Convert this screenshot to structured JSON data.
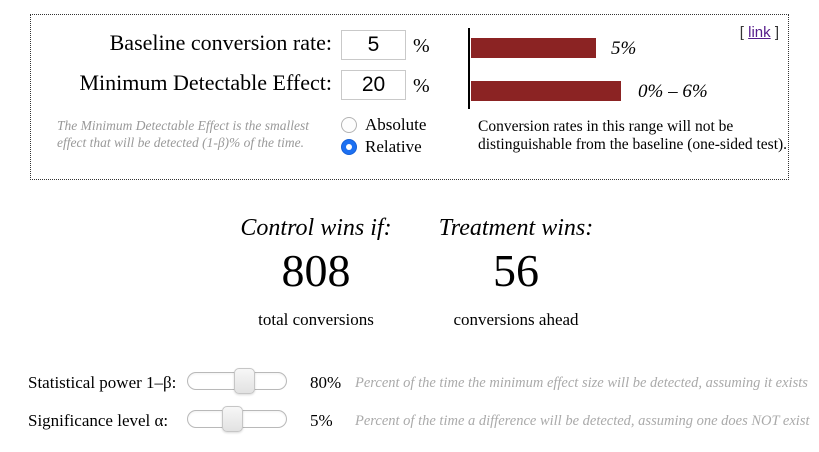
{
  "top_box": {
    "fields": [
      {
        "label": "Baseline conversion rate:",
        "value": "5",
        "unit": "%"
      },
      {
        "label": "Minimum Detectable Effect:",
        "value": "20",
        "unit": "%"
      }
    ],
    "mde_note": {
      "line1": "The Minimum Detectable Effect is the smallest",
      "line2": "effect that will be detected (1-β)% of the time."
    },
    "mode_options": [
      {
        "label": "Absolute",
        "selected": false
      },
      {
        "label": "Relative",
        "selected": true
      }
    ],
    "link": {
      "prefix": "[ ",
      "label": "link",
      "suffix": " ]"
    }
  },
  "chart_data": {
    "type": "bar",
    "orientation": "horizontal",
    "bars": [
      {
        "label": "5%",
        "value": 5
      },
      {
        "label": "0% – 6%",
        "value": 6
      }
    ],
    "axis_max": 6,
    "bar_color": "#8B2323",
    "caption_line1": "Conversion rates in this range will not be",
    "caption_line2": "distinguishable from the baseline (one-sided test)."
  },
  "results": {
    "control": {
      "heading": "Control wins if:",
      "value": "808",
      "caption": "total conversions"
    },
    "treatment": {
      "heading": "Treatment wins:",
      "value": "56",
      "caption": "conversions ahead"
    }
  },
  "sliders": [
    {
      "label": "Statistical power 1–β:",
      "value": "80%",
      "thumb_percent": 57,
      "note": "Percent of the time the minimum effect size will be detected, assuming it exists"
    },
    {
      "label": "Significance level α:",
      "value": "5%",
      "thumb_percent": 45,
      "note": "Percent of the time a difference will be detected, assuming one does NOT exist"
    }
  ],
  "colors": {
    "bar": "#8B2323",
    "link": "#551A8B",
    "radio_selected": "#1c70f2",
    "muted_text": "#999999"
  }
}
